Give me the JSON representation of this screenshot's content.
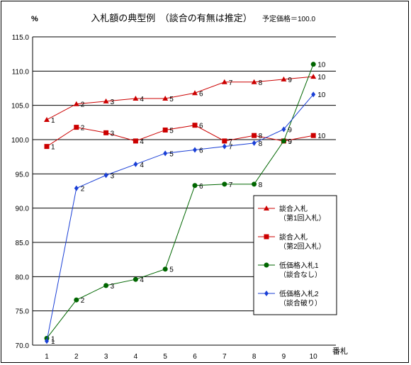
{
  "chart_data": {
    "type": "line",
    "title": "入札額の典型例　（談合の有無は推定）",
    "note": "予定価格＝100.0",
    "ylabel": "%",
    "xlabel": "番札",
    "ylim": [
      70,
      115
    ],
    "yticks": [
      "70.0",
      "75.0",
      "80.0",
      "85.0",
      "90.0",
      "95.0",
      "100.0",
      "105.0",
      "110.0",
      "115.0"
    ],
    "categories": [
      "1",
      "2",
      "3",
      "4",
      "5",
      "6",
      "7",
      "8",
      "9",
      "10"
    ],
    "grid": "horizontal",
    "legend_position": "right",
    "series": [
      {
        "name": "談合入札",
        "name2": "（第1回入札）",
        "color": "#cc0000",
        "marker": "triangle",
        "values": [
          102.9,
          105.2,
          105.6,
          106.0,
          106.0,
          106.8,
          108.4,
          108.4,
          108.8,
          109.2
        ],
        "labels": [
          "1",
          "2",
          "3",
          "4",
          "5",
          "6",
          "7",
          "8",
          "9",
          "10"
        ]
      },
      {
        "name": "談合入札",
        "name2": "（第2回入札）",
        "color": "#cc0000",
        "marker": "square",
        "values": [
          99.0,
          101.8,
          101.0,
          99.8,
          101.4,
          102.1,
          99.8,
          100.6,
          99.8,
          100.6
        ],
        "labels": [
          "1",
          "2",
          "3",
          "4",
          "5",
          "6",
          "7",
          "8",
          "9",
          "10"
        ]
      },
      {
        "name": "低価格入札1",
        "name2": "（談合なし）",
        "color": "#006600",
        "marker": "circle",
        "values": [
          71.0,
          76.6,
          78.7,
          79.6,
          81.1,
          93.3,
          93.5,
          93.5,
          99.8,
          111.0
        ],
        "labels": [
          "1",
          "2",
          "3",
          "4",
          "5",
          "6",
          "7",
          "8",
          "9",
          "10"
        ]
      },
      {
        "name": "低価格入札2",
        "name2": "（談合破り）",
        "color": "#1a3fd6",
        "marker": "diamond",
        "values": [
          70.6,
          92.9,
          94.8,
          96.4,
          98.0,
          98.5,
          99.0,
          99.5,
          101.5,
          106.6
        ],
        "labels": [
          "1",
          "2",
          "3",
          "4",
          "5",
          "6",
          "7",
          "8",
          "9",
          "10"
        ]
      }
    ]
  }
}
